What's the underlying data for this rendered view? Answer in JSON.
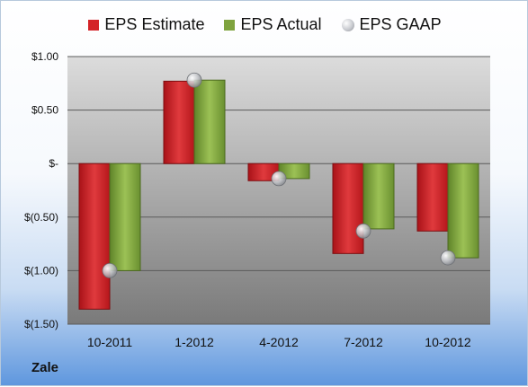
{
  "company": "Zale",
  "colors": {
    "estimate": "#d42327",
    "actual": "#7fa33e",
    "gaap": "#b9bbc0"
  },
  "chart_data": {
    "type": "bar",
    "categories": [
      "10-2011",
      "1-2012",
      "4-2012",
      "7-2012",
      "10-2012"
    ],
    "series": [
      {
        "name": "EPS Estimate",
        "type": "bar",
        "values": [
          -1.36,
          0.77,
          -0.16,
          -0.84,
          -0.63
        ]
      },
      {
        "name": "EPS Actual",
        "type": "bar",
        "values": [
          -1.0,
          0.78,
          -0.14,
          -0.61,
          -0.88
        ]
      },
      {
        "name": "EPS GAAP",
        "type": "scatter",
        "values": [
          -1.0,
          0.78,
          -0.14,
          -0.63,
          -0.88
        ]
      }
    ],
    "ylim": [
      -1.5,
      1.0
    ],
    "yticks": [
      1.0,
      0.5,
      0,
      -0.5,
      -1.0,
      -1.5
    ],
    "ytick_labels": [
      "$1.00",
      "$0.50",
      "$-",
      "$(0.50)",
      "$(1.00)",
      "$(1.50)"
    ],
    "legend_position": "top",
    "grid": true
  }
}
